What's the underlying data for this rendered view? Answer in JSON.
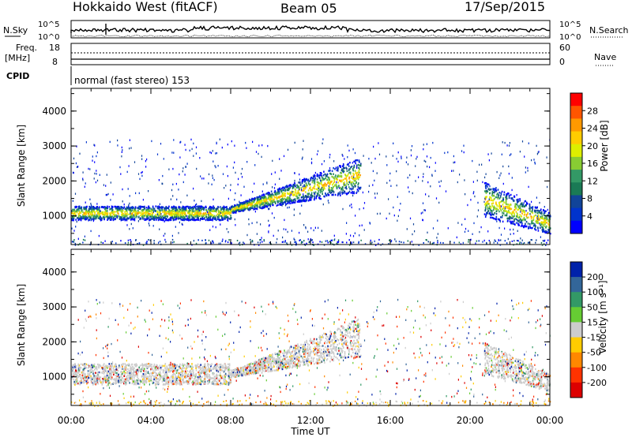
{
  "header": {
    "station": "Hokkaido West (fitACF)",
    "beam": "Beam 05",
    "date": "17/Sep/2015"
  },
  "top_panels": {
    "nsky_label": "N.Sky",
    "nsearch_label": "N.Search",
    "nsky_ticks": [
      "10^5",
      "10^0"
    ],
    "nsky_ticks_right": [
      "10^5",
      "10^0"
    ],
    "freq_label": "Freq.",
    "freq_unit": "[MHz]",
    "freq_ticks": [
      "18",
      "8"
    ],
    "nave_label": "Nave",
    "nave_ticks": [
      "60",
      "0"
    ],
    "cpid_label": "CPID",
    "cpid_value": "normal (fast stereo) 153"
  },
  "chart_data": [
    {
      "type": "heatmap",
      "name": "power",
      "ylabel": "Slant Range [km]",
      "y_ticks": [
        "4000",
        "3000",
        "2000",
        "1000"
      ],
      "ylim": [
        180,
        4650
      ],
      "colorbar_label": "Power [dB]",
      "colorbar_ticks": [
        "28",
        "24",
        "20",
        "16",
        "12",
        "8",
        "4"
      ],
      "colorbar_colors": [
        "#ff0000",
        "#ff5500",
        "#ff9900",
        "#ffcc00",
        "#ddee00",
        "#88cc33",
        "#339966",
        "#1a7a55",
        "#114499",
        "#0033cc",
        "#0000ff"
      ],
      "bands": [
        {
          "t0": 0,
          "t1": 8,
          "r0": 900,
          "r1": 1300
        },
        {
          "t0": 8,
          "t1": 14.5,
          "r0": 1100,
          "r1": 2500
        },
        {
          "t0": 20.7,
          "t1": 24,
          "r0": 700,
          "r1": 2000
        }
      ]
    },
    {
      "type": "heatmap",
      "name": "velocity",
      "ylabel": "Slant Range [km]",
      "y_ticks": [
        "4000",
        "3000",
        "2000",
        "1000"
      ],
      "ylim": [
        180,
        4650
      ],
      "colorbar_label": "Velocity [m s⁻¹]",
      "colorbar_ticks": [
        "200",
        "100",
        "50",
        "15",
        "-15",
        "-50",
        "-100",
        "-200"
      ],
      "colorbar_colors": [
        "#0022aa",
        "#336699",
        "#339966",
        "#66cc33",
        "#cccccc",
        "#ffcc00",
        "#ff8800",
        "#ff3300",
        "#dd0000"
      ],
      "bands": [
        {
          "t0": 0,
          "t1": 8,
          "r0": 800,
          "r1": 1400
        },
        {
          "t0": 8,
          "t1": 14.5,
          "r0": 1000,
          "r1": 2500
        },
        {
          "t0": 20.7,
          "t1": 24,
          "r0": 800,
          "r1": 2000
        }
      ]
    }
  ],
  "x_axis": {
    "label": "Time UT",
    "ticks": [
      "00:00",
      "04:00",
      "08:00",
      "12:00",
      "16:00",
      "20:00",
      "00:00"
    ],
    "xlim": [
      0,
      24
    ]
  }
}
